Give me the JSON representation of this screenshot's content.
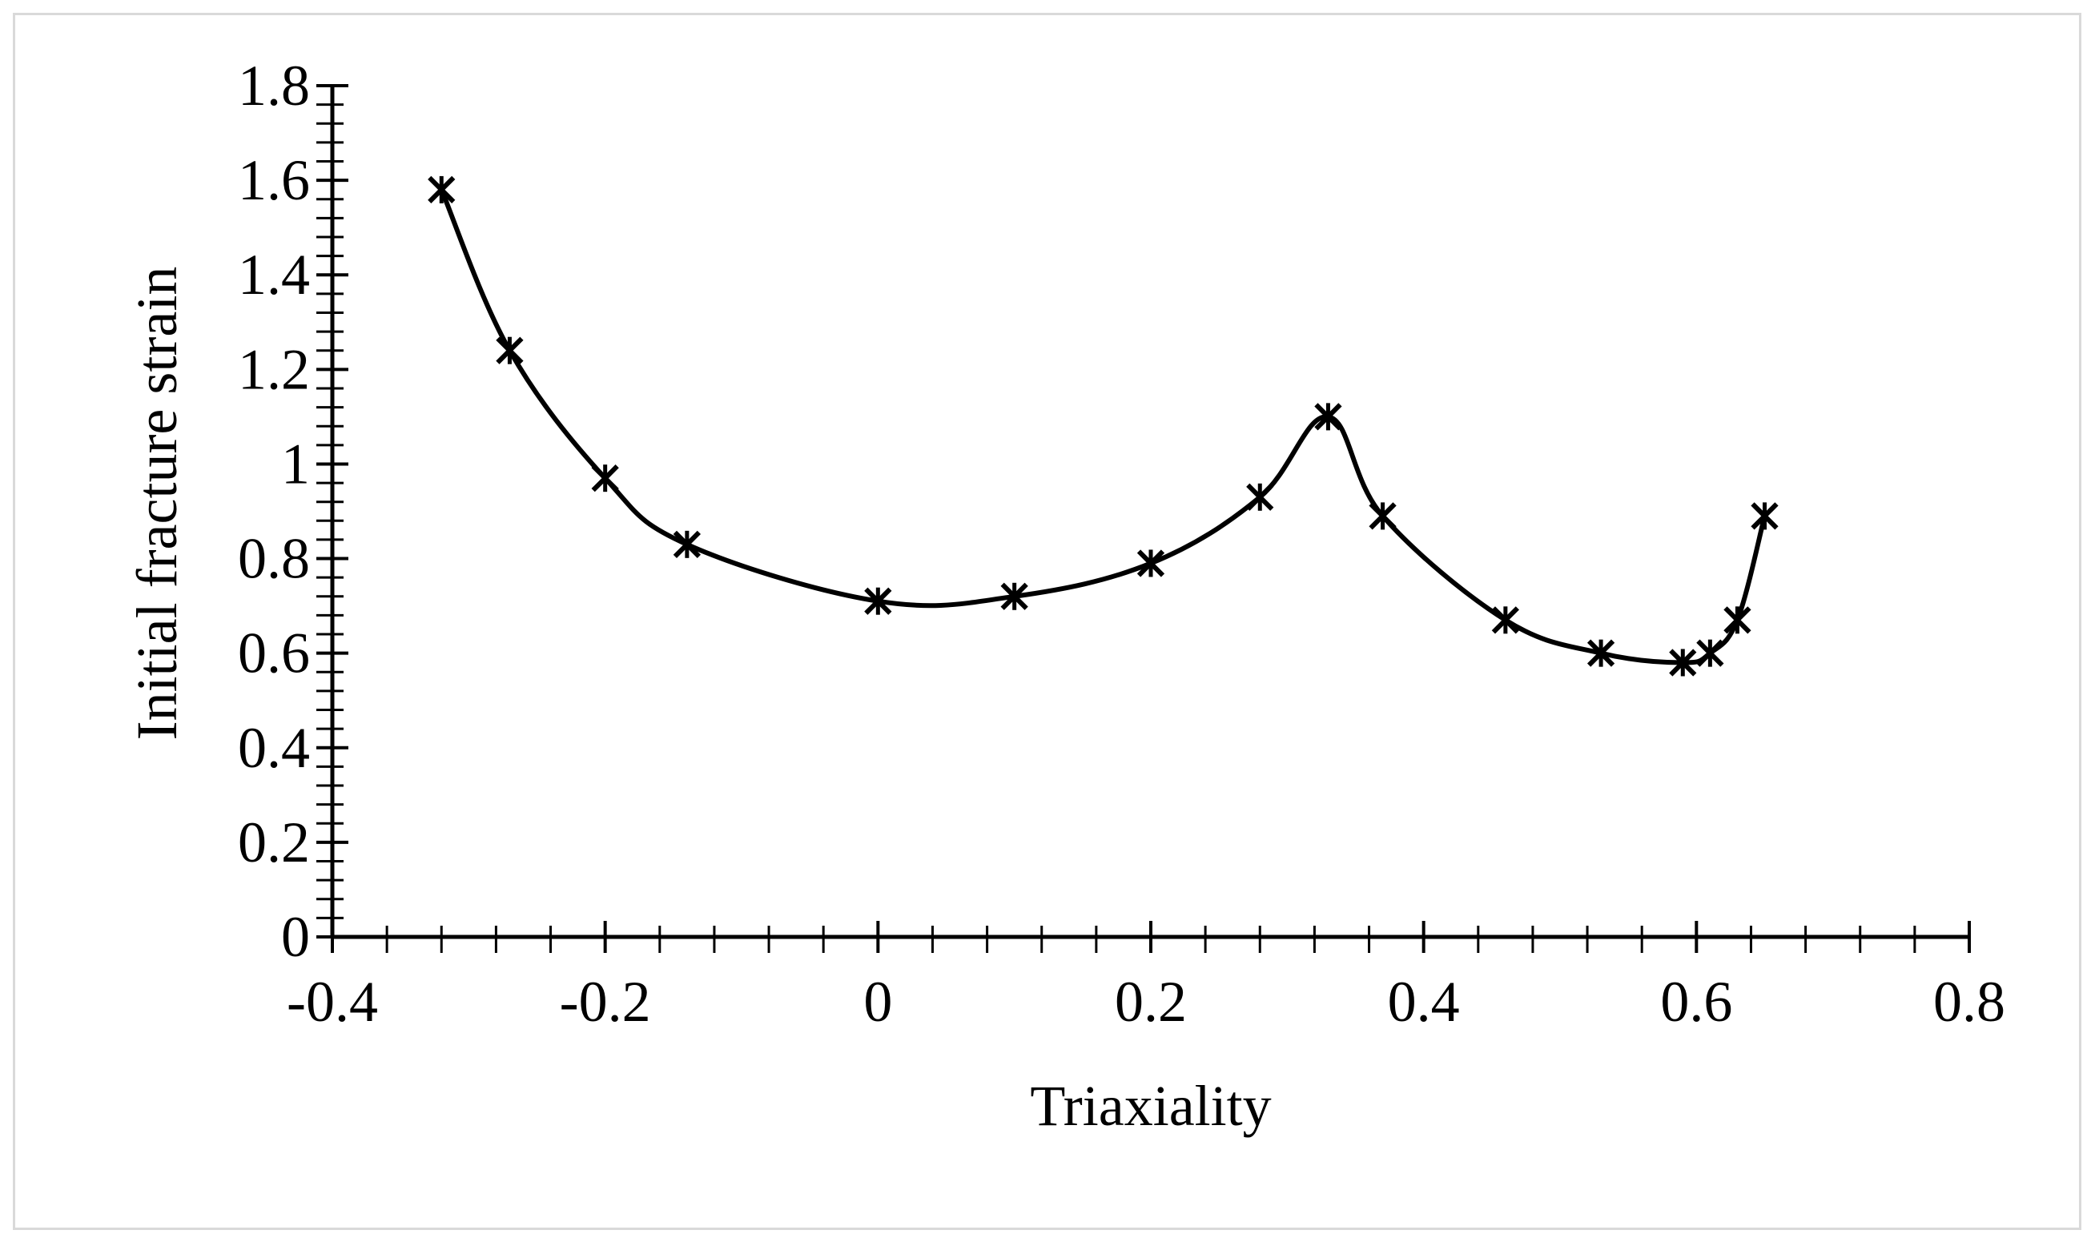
{
  "chart_data": {
    "type": "line",
    "title": "",
    "xlabel": "Triaxiality",
    "ylabel": "Initial fracture strain",
    "xlim": [
      -0.4,
      0.8
    ],
    "ylim": [
      0,
      1.8
    ],
    "x_ticks": [
      "-0.4",
      "-0.2",
      "0",
      "0.2",
      "0.4",
      "0.6",
      "0.8"
    ],
    "y_ticks": [
      "0",
      "0.2",
      "0.4",
      "0.6",
      "0.8",
      "1",
      "1.2",
      "1.4",
      "1.6",
      "1.8"
    ],
    "grid": false,
    "legend": false,
    "marker": "asterisk",
    "line_style": "smooth",
    "series": [
      {
        "x": [
          -0.32,
          -0.27,
          -0.2,
          -0.14,
          0.0,
          0.1,
          0.2,
          0.28,
          0.33,
          0.37,
          0.46,
          0.53,
          0.59,
          0.61,
          0.63,
          0.65
        ],
        "y": [
          1.58,
          1.24,
          0.97,
          0.83,
          0.71,
          0.72,
          0.79,
          0.93,
          1.1,
          0.89,
          0.67,
          0.6,
          0.58,
          0.6,
          0.67,
          0.89
        ]
      }
    ],
    "colors": {
      "line": "#000000",
      "marker": "#000000",
      "frame": "#d9d9d9"
    }
  }
}
